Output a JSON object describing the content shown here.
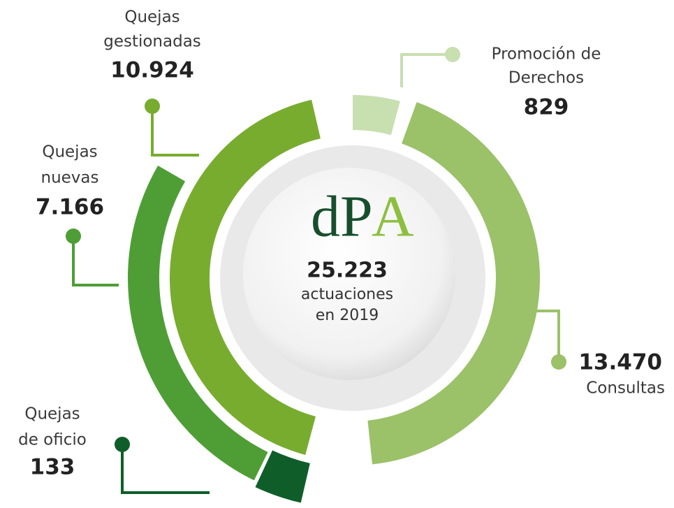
{
  "segments": [
    {
      "label": [
        "Quejas",
        "gestionadas"
      ],
      "value": "10.924"
    },
    {
      "label": [
        "Promoción de",
        "Derechos"
      ],
      "value": "829"
    },
    {
      "label": [
        "Quejas",
        "nuevas"
      ],
      "value": "7.166"
    },
    {
      "label": [
        "Consultas"
      ],
      "value": "13.470"
    },
    {
      "label": [
        "Quejas",
        "de oficio"
      ],
      "value": "133"
    }
  ],
  "center": {
    "logo_d": "d",
    "logo_p": "P",
    "logo_a": "A",
    "total": "25.223",
    "caption": [
      "actuaciones",
      "en 2019"
    ]
  }
}
